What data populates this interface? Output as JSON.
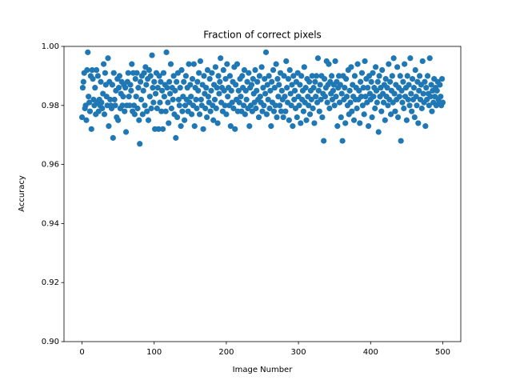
{
  "chart_data": {
    "type": "scatter",
    "title": "Fraction of correct pixels",
    "xlabel": "Image Number",
    "ylabel": "Accuracy",
    "color": "#1f77b4",
    "xlim": [
      -25,
      525
    ],
    "xticks": [
      0,
      100,
      200,
      300,
      400,
      500
    ],
    "ylim": [
      0.9,
      1.0
    ],
    "yticks": [
      {
        "value": 0.9,
        "label": "0.90"
      },
      {
        "value": 0.92,
        "label": "0.92"
      },
      {
        "value": 0.94,
        "label": "0.94"
      },
      {
        "value": 0.96,
        "label": "0.96"
      },
      {
        "value": 0.98,
        "label": "0.98"
      },
      {
        "value": 1.0,
        "label": "1.00"
      }
    ],
    "x": [
      0,
      1,
      2,
      3,
      4,
      5,
      6,
      7,
      8,
      9,
      10,
      11,
      12,
      13,
      14,
      15,
      16,
      17,
      18,
      19,
      20,
      21,
      22,
      23,
      24,
      25,
      26,
      27,
      28,
      29,
      30,
      31,
      32,
      33,
      34,
      35,
      36,
      37,
      38,
      39,
      40,
      41,
      42,
      43,
      44,
      45,
      46,
      47,
      48,
      49,
      50,
      51,
      52,
      53,
      54,
      55,
      56,
      57,
      58,
      59,
      60,
      61,
      62,
      63,
      64,
      65,
      66,
      67,
      68,
      69,
      70,
      71,
      72,
      73,
      74,
      75,
      76,
      77,
      78,
      79,
      80,
      81,
      82,
      83,
      84,
      85,
      86,
      87,
      88,
      89,
      90,
      91,
      92,
      93,
      94,
      95,
      96,
      97,
      98,
      99,
      100,
      101,
      102,
      103,
      104,
      105,
      106,
      107,
      108,
      109,
      110,
      111,
      112,
      113,
      114,
      115,
      116,
      117,
      118,
      119,
      120,
      121,
      122,
      123,
      124,
      125,
      126,
      127,
      128,
      129,
      130,
      131,
      132,
      133,
      134,
      135,
      136,
      137,
      138,
      139,
      140,
      141,
      142,
      143,
      144,
      145,
      146,
      147,
      148,
      149,
      150,
      151,
      152,
      153,
      154,
      155,
      156,
      157,
      158,
      159,
      160,
      161,
      162,
      163,
      164,
      165,
      166,
      167,
      168,
      169,
      170,
      171,
      172,
      173,
      174,
      175,
      176,
      177,
      178,
      179,
      180,
      181,
      182,
      183,
      184,
      185,
      186,
      187,
      188,
      189,
      190,
      191,
      192,
      193,
      194,
      195,
      196,
      197,
      198,
      199,
      200,
      201,
      202,
      203,
      204,
      205,
      206,
      207,
      208,
      209,
      210,
      211,
      212,
      213,
      214,
      215,
      216,
      217,
      218,
      219,
      220,
      221,
      222,
      223,
      224,
      225,
      226,
      227,
      228,
      229,
      230,
      231,
      232,
      233,
      234,
      235,
      236,
      237,
      238,
      239,
      240,
      241,
      242,
      243,
      244,
      245,
      246,
      247,
      248,
      249,
      250,
      251,
      252,
      253,
      254,
      255,
      256,
      257,
      258,
      259,
      260,
      261,
      262,
      263,
      264,
      265,
      266,
      267,
      268,
      269,
      270,
      271,
      272,
      273,
      274,
      275,
      276,
      277,
      278,
      279,
      280,
      281,
      282,
      283,
      284,
      285,
      286,
      287,
      288,
      289,
      290,
      291,
      292,
      293,
      294,
      295,
      296,
      297,
      298,
      299,
      300,
      301,
      302,
      303,
      304,
      305,
      306,
      307,
      308,
      309,
      310,
      311,
      312,
      313,
      314,
      315,
      316,
      317,
      318,
      319,
      320,
      321,
      322,
      323,
      324,
      325,
      326,
      327,
      328,
      329,
      330,
      331,
      332,
      333,
      334,
      335,
      336,
      337,
      338,
      339,
      340,
      341,
      342,
      343,
      344,
      345,
      346,
      347,
      348,
      349,
      350,
      351,
      352,
      353,
      354,
      355,
      356,
      357,
      358,
      359,
      360,
      361,
      362,
      363,
      364,
      365,
      366,
      367,
      368,
      369,
      370,
      371,
      372,
      373,
      374,
      375,
      376,
      377,
      378,
      379,
      380,
      381,
      382,
      383,
      384,
      385,
      386,
      387,
      388,
      389,
      390,
      391,
      392,
      393,
      394,
      395,
      396,
      397,
      398,
      399,
      400,
      401,
      402,
      403,
      404,
      405,
      406,
      407,
      408,
      409,
      410,
      411,
      412,
      413,
      414,
      415,
      416,
      417,
      418,
      419,
      420,
      421,
      422,
      423,
      424,
      425,
      426,
      427,
      428,
      429,
      430,
      431,
      432,
      433,
      434,
      435,
      436,
      437,
      438,
      439,
      440,
      441,
      442,
      443,
      444,
      445,
      446,
      447,
      448,
      449,
      450,
      451,
      452,
      453,
      454,
      455,
      456,
      457,
      458,
      459,
      460,
      461,
      462,
      463,
      464,
      465,
      466,
      467,
      468,
      469,
      470,
      471,
      472,
      473,
      474,
      475,
      476,
      477,
      478,
      479,
      480,
      481,
      482,
      483,
      484,
      485,
      486,
      487,
      488,
      489,
      490,
      491,
      492,
      493,
      494,
      495,
      496,
      497,
      498,
      499,
      500
    ],
    "values": [
      0.976,
      0.986,
      0.988,
      0.991,
      0.979,
      0.98,
      0.975,
      0.992,
      0.998,
      0.983,
      0.981,
      0.978,
      0.99,
      0.972,
      0.992,
      0.989,
      0.982,
      0.98,
      0.986,
      0.977,
      0.992,
      0.981,
      0.99,
      0.978,
      0.982,
      0.98,
      0.988,
      0.981,
      0.979,
      0.984,
      0.994,
      0.977,
      0.991,
      0.987,
      0.983,
      0.98,
      0.996,
      0.973,
      0.988,
      0.982,
      0.98,
      0.979,
      0.987,
      0.969,
      0.991,
      0.982,
      0.98,
      0.985,
      0.976,
      0.989,
      0.975,
      0.986,
      0.99,
      0.979,
      0.984,
      0.988,
      0.98,
      0.983,
      0.987,
      0.978,
      0.986,
      0.971,
      0.98,
      0.988,
      0.991,
      0.983,
      0.98,
      0.987,
      0.985,
      0.994,
      0.978,
      0.991,
      0.98,
      0.977,
      0.989,
      0.983,
      0.991,
      0.979,
      0.986,
      0.975,
      0.967,
      0.988,
      0.982,
      0.99,
      0.977,
      0.985,
      0.991,
      0.98,
      0.993,
      0.987,
      0.978,
      0.989,
      0.975,
      0.992,
      0.983,
      0.99,
      0.979,
      0.997,
      0.986,
      0.981,
      0.988,
      0.972,
      0.984,
      0.991,
      0.979,
      0.986,
      0.972,
      0.99,
      0.981,
      0.988,
      0.978,
      0.985,
      0.972,
      0.991,
      0.983,
      0.987,
      0.978,
      0.998,
      0.986,
      0.981,
      0.974,
      0.988,
      0.984,
      0.994,
      0.979,
      0.986,
      0.982,
      0.99,
      0.977,
      0.985,
      0.969,
      0.988,
      0.976,
      0.991,
      0.982,
      0.98,
      0.986,
      0.973,
      0.992,
      0.978,
      0.983,
      0.988,
      0.975,
      0.98,
      0.99,
      0.982,
      0.986,
      0.978,
      0.994,
      0.981,
      0.987,
      0.983,
      0.977,
      0.989,
      0.98,
      0.994,
      0.973,
      0.986,
      0.982,
      0.979,
      0.988,
      0.985,
      0.991,
      0.977,
      0.995,
      0.982,
      0.98,
      0.987,
      0.972,
      0.99,
      0.984,
      0.979,
      0.986,
      0.976,
      0.992,
      0.983,
      0.981,
      0.989,
      0.978,
      0.985,
      0.991,
      0.98,
      0.975,
      0.987,
      0.982,
      0.993,
      0.979,
      0.986,
      0.974,
      0.99,
      0.984,
      0.988,
      0.996,
      0.981,
      0.986,
      0.978,
      0.992,
      0.985,
      0.98,
      0.989,
      0.977,
      0.994,
      0.983,
      0.986,
      0.98,
      0.99,
      0.973,
      0.985,
      0.981,
      0.988,
      0.979,
      0.993,
      0.972,
      0.987,
      0.982,
      0.994,
      0.978,
      0.985,
      0.981,
      0.989,
      0.983,
      0.978,
      0.99,
      0.986,
      0.98,
      0.992,
      0.977,
      0.985,
      0.982,
      0.988,
      0.979,
      0.991,
      0.973,
      0.986,
      0.98,
      0.987,
      0.978,
      0.989,
      0.984,
      0.981,
      0.992,
      0.979,
      0.985,
      0.988,
      0.982,
      0.976,
      0.99,
      0.983,
      0.981,
      0.993,
      0.978,
      0.986,
      0.98,
      0.989,
      0.984,
      0.998,
      0.977,
      0.987,
      0.982,
      0.99,
      0.979,
      0.985,
      0.973,
      0.988,
      0.981,
      0.992,
      0.978,
      0.986,
      0.98,
      0.994,
      0.976,
      0.989,
      0.983,
      0.987,
      0.98,
      0.991,
      0.978,
      0.985,
      0.982,
      0.976,
      0.99,
      0.983,
      0.978,
      0.995,
      0.986,
      0.981,
      0.989,
      0.975,
      0.992,
      0.984,
      0.98,
      0.987,
      0.973,
      0.99,
      0.982,
      0.985,
      0.979,
      0.988,
      0.976,
      0.991,
      0.983,
      0.98,
      0.987,
      0.974,
      0.99,
      0.982,
      0.985,
      0.978,
      0.993,
      0.981,
      0.986,
      0.975,
      0.989,
      0.983,
      0.98,
      0.988,
      0.977,
      0.985,
      0.982,
      0.99,
      0.979,
      0.986,
      0.974,
      0.988,
      0.983,
      0.99,
      0.981,
      0.996,
      0.985,
      0.978,
      0.987,
      0.982,
      0.99,
      0.976,
      0.984,
      0.968,
      0.989,
      0.983,
      0.986,
      0.995,
      0.981,
      0.987,
      0.994,
      0.979,
      0.988,
      0.984,
      0.99,
      0.982,
      0.985,
      0.987,
      0.98,
      0.995,
      0.983,
      0.988,
      0.973,
      0.986,
      0.99,
      0.981,
      0.987,
      0.976,
      0.984,
      0.968,
      0.99,
      0.982,
      0.986,
      0.974,
      0.989,
      0.983,
      0.98,
      0.992,
      0.977,
      0.985,
      0.981,
      0.993,
      0.978,
      0.987,
      0.983,
      0.975,
      0.99,
      0.982,
      0.986,
      0.979,
      0.994,
      0.982,
      0.985,
      0.974,
      0.988,
      0.983,
      0.991,
      0.98,
      0.986,
      0.977,
      0.995,
      0.983,
      0.989,
      0.981,
      0.986,
      0.973,
      0.99,
      0.984,
      0.982,
      0.988,
      0.976,
      0.991,
      0.983,
      0.986,
      0.979,
      0.993,
      0.985,
      0.981,
      0.988,
      0.971,
      0.99,
      0.983,
      0.986,
      0.978,
      0.992,
      0.984,
      0.981,
      0.987,
      0.975,
      0.989,
      0.983,
      0.986,
      0.98,
      0.994,
      0.982,
      0.988,
      0.977,
      0.985,
      0.99,
      0.981,
      0.996,
      0.984,
      0.978,
      0.987,
      0.982,
      0.993,
      0.976,
      0.986,
      0.983,
      0.99,
      0.968,
      0.985,
      0.981,
      0.988,
      0.979,
      0.994,
      0.983,
      0.986,
      0.975,
      0.99,
      0.982,
      0.987,
      0.98,
      0.996,
      0.984,
      0.978,
      0.989,
      0.982,
      0.986,
      0.976,
      0.992,
      0.983,
      0.98,
      0.988,
      0.974,
      0.985,
      0.99,
      0.982,
      0.987,
      0.979,
      0.995,
      0.984,
      0.981,
      0.988,
      0.973,
      0.986,
      0.982,
      0.99,
      0.984,
      0.98,
      0.996,
      0.983,
      0.987,
      0.978,
      0.985,
      0.981,
      0.989,
      0.983,
      0.986,
      0.98,
      0.985,
      0.988,
      0.982,
      0.981,
      0.987,
      0.983,
      0.98,
      0.989,
      0.981
    ]
  }
}
